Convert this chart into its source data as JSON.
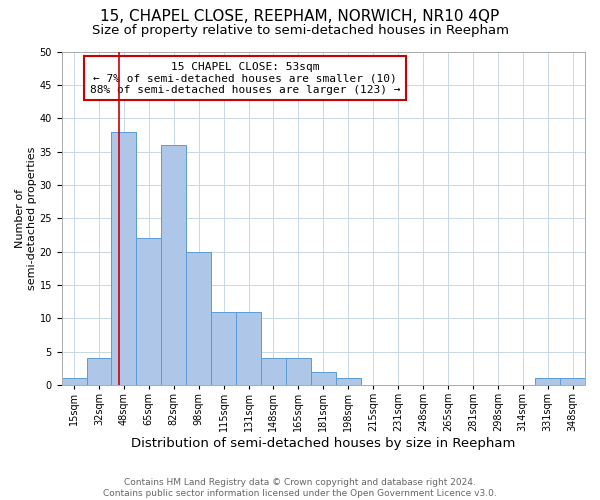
{
  "title": "15, CHAPEL CLOSE, REEPHAM, NORWICH, NR10 4QP",
  "subtitle": "Size of property relative to semi-detached houses in Reepham",
  "xlabel": "Distribution of semi-detached houses by size in Reepham",
  "ylabel": "Number of\nsemi-detached properties",
  "bins": [
    "15sqm",
    "32sqm",
    "48sqm",
    "65sqm",
    "82sqm",
    "98sqm",
    "115sqm",
    "131sqm",
    "148sqm",
    "165sqm",
    "181sqm",
    "198sqm",
    "215sqm",
    "231sqm",
    "248sqm",
    "265sqm",
    "281sqm",
    "298sqm",
    "314sqm",
    "331sqm",
    "348sqm"
  ],
  "values": [
    1,
    4,
    38,
    22,
    36,
    20,
    11,
    11,
    4,
    4,
    2,
    1,
    0,
    0,
    0,
    0,
    0,
    0,
    0,
    1,
    1
  ],
  "bar_color": "#aec6e8",
  "bar_edge_color": "#5b9bd5",
  "property_sqm": 53,
  "pct_smaller": 7,
  "n_smaller": 10,
  "pct_larger": 88,
  "n_larger": 123,
  "annotation_text_line1": "15 CHAPEL CLOSE: 53sqm",
  "annotation_text_line2": "← 7% of semi-detached houses are smaller (10)",
  "annotation_text_line3": "88% of semi-detached houses are larger (123) →",
  "ylim": [
    0,
    50
  ],
  "yticks": [
    0,
    5,
    10,
    15,
    20,
    25,
    30,
    35,
    40,
    45,
    50
  ],
  "footer": "Contains HM Land Registry data © Crown copyright and database right 2024.\nContains public sector information licensed under the Open Government Licence v3.0.",
  "title_fontsize": 11,
  "subtitle_fontsize": 9.5,
  "xlabel_fontsize": 9.5,
  "ylabel_fontsize": 8,
  "tick_fontsize": 7,
  "annotation_fontsize": 8,
  "footer_fontsize": 6.5,
  "red_line_color": "#cc0000",
  "annotation_box_edge_color": "#cc0000",
  "background_color": "#ffffff",
  "grid_color": "#c8d8e8"
}
